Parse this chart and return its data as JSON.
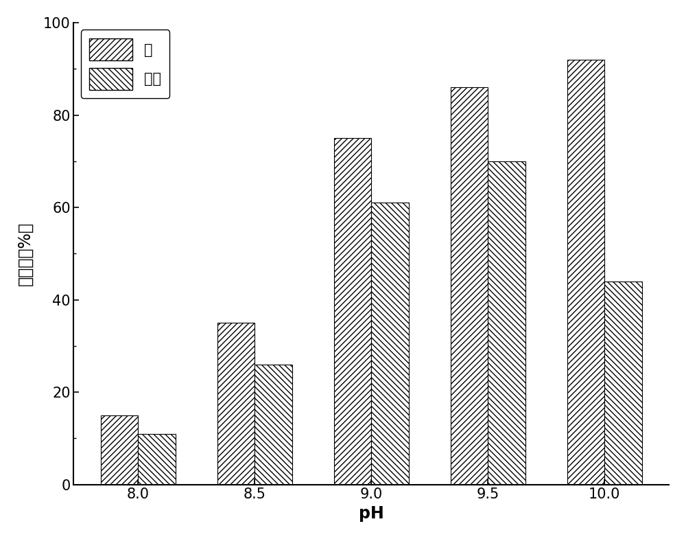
{
  "categories": [
    "8.0",
    "8.5",
    "9.0",
    "9.5",
    "10.0"
  ],
  "phosphorus": [
    15,
    35,
    75,
    86,
    92
  ],
  "ammonia": [
    11,
    26,
    61,
    70,
    44
  ],
  "xlabel": "pH",
  "ylabel": "去除率（%）",
  "ylim": [
    0,
    100
  ],
  "yticks": [
    0,
    20,
    40,
    60,
    80,
    100
  ],
  "legend_phosphorus": "磷",
  "legend_ammonia": "氨氮",
  "bar_width": 0.32,
  "hatch_phosphorus": "////",
  "hatch_ammonia": "\\\\\\\\",
  "facecolor": "white",
  "edgecolor": "black",
  "background_color": "white",
  "plot_background": "white",
  "label_fontsize": 17,
  "tick_fontsize": 15,
  "legend_fontsize": 15
}
